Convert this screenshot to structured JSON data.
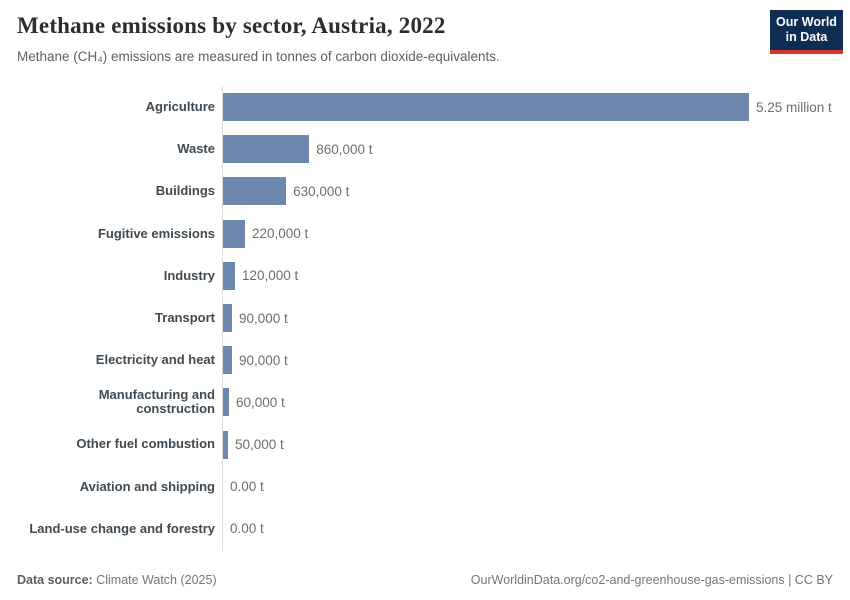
{
  "header": {
    "title": "Methane emissions by sector, Austria, 2022",
    "subtitle": "Methane (CH₄) emissions are measured in tonnes of carbon dioxide-equivalents.",
    "logo": {
      "line1": "Our World",
      "line2": "in Data"
    }
  },
  "chart_data": {
    "type": "bar",
    "orientation": "horizontal",
    "title": "Methane emissions by sector, Austria, 2022",
    "unit": "tonnes of carbon dioxide-equivalents",
    "categories": [
      "Agriculture",
      "Waste",
      "Buildings",
      "Fugitive emissions",
      "Industry",
      "Transport",
      "Electricity and heat",
      "Manufacturing and construction",
      "Other fuel combustion",
      "Aviation and shipping",
      "Land-use change and forestry"
    ],
    "values": [
      5250000,
      860000,
      630000,
      220000,
      120000,
      90000,
      90000,
      60000,
      50000,
      0,
      0
    ],
    "value_labels": [
      "5.25 million t",
      "860,000 t",
      "630,000 t",
      "220,000 t",
      "120,000 t",
      "90,000 t",
      "90,000 t",
      "60,000 t",
      "50,000 t",
      "0.00 t",
      "0.00 t"
    ],
    "xlim": [
      0,
      5250000
    ],
    "grid": false,
    "legend": false,
    "bar_color": "#6e87ad"
  },
  "footer": {
    "source_label": "Data source:",
    "source_value": " Climate Watch (2025)",
    "url": "OurWorldinData.org/co2-and-greenhouse-gas-emissions | CC BY"
  },
  "colors": {
    "bar": "#6e87ad",
    "axis_line": "#dcdcdc",
    "title_text": "#2d2d2d",
    "subtitle_text": "#616161",
    "category_text": "#3f4a52",
    "value_text": "#6e6e6e",
    "footer_text": "#757575",
    "logo_navy": "#0f2c52",
    "logo_red": "#d4352c"
  }
}
